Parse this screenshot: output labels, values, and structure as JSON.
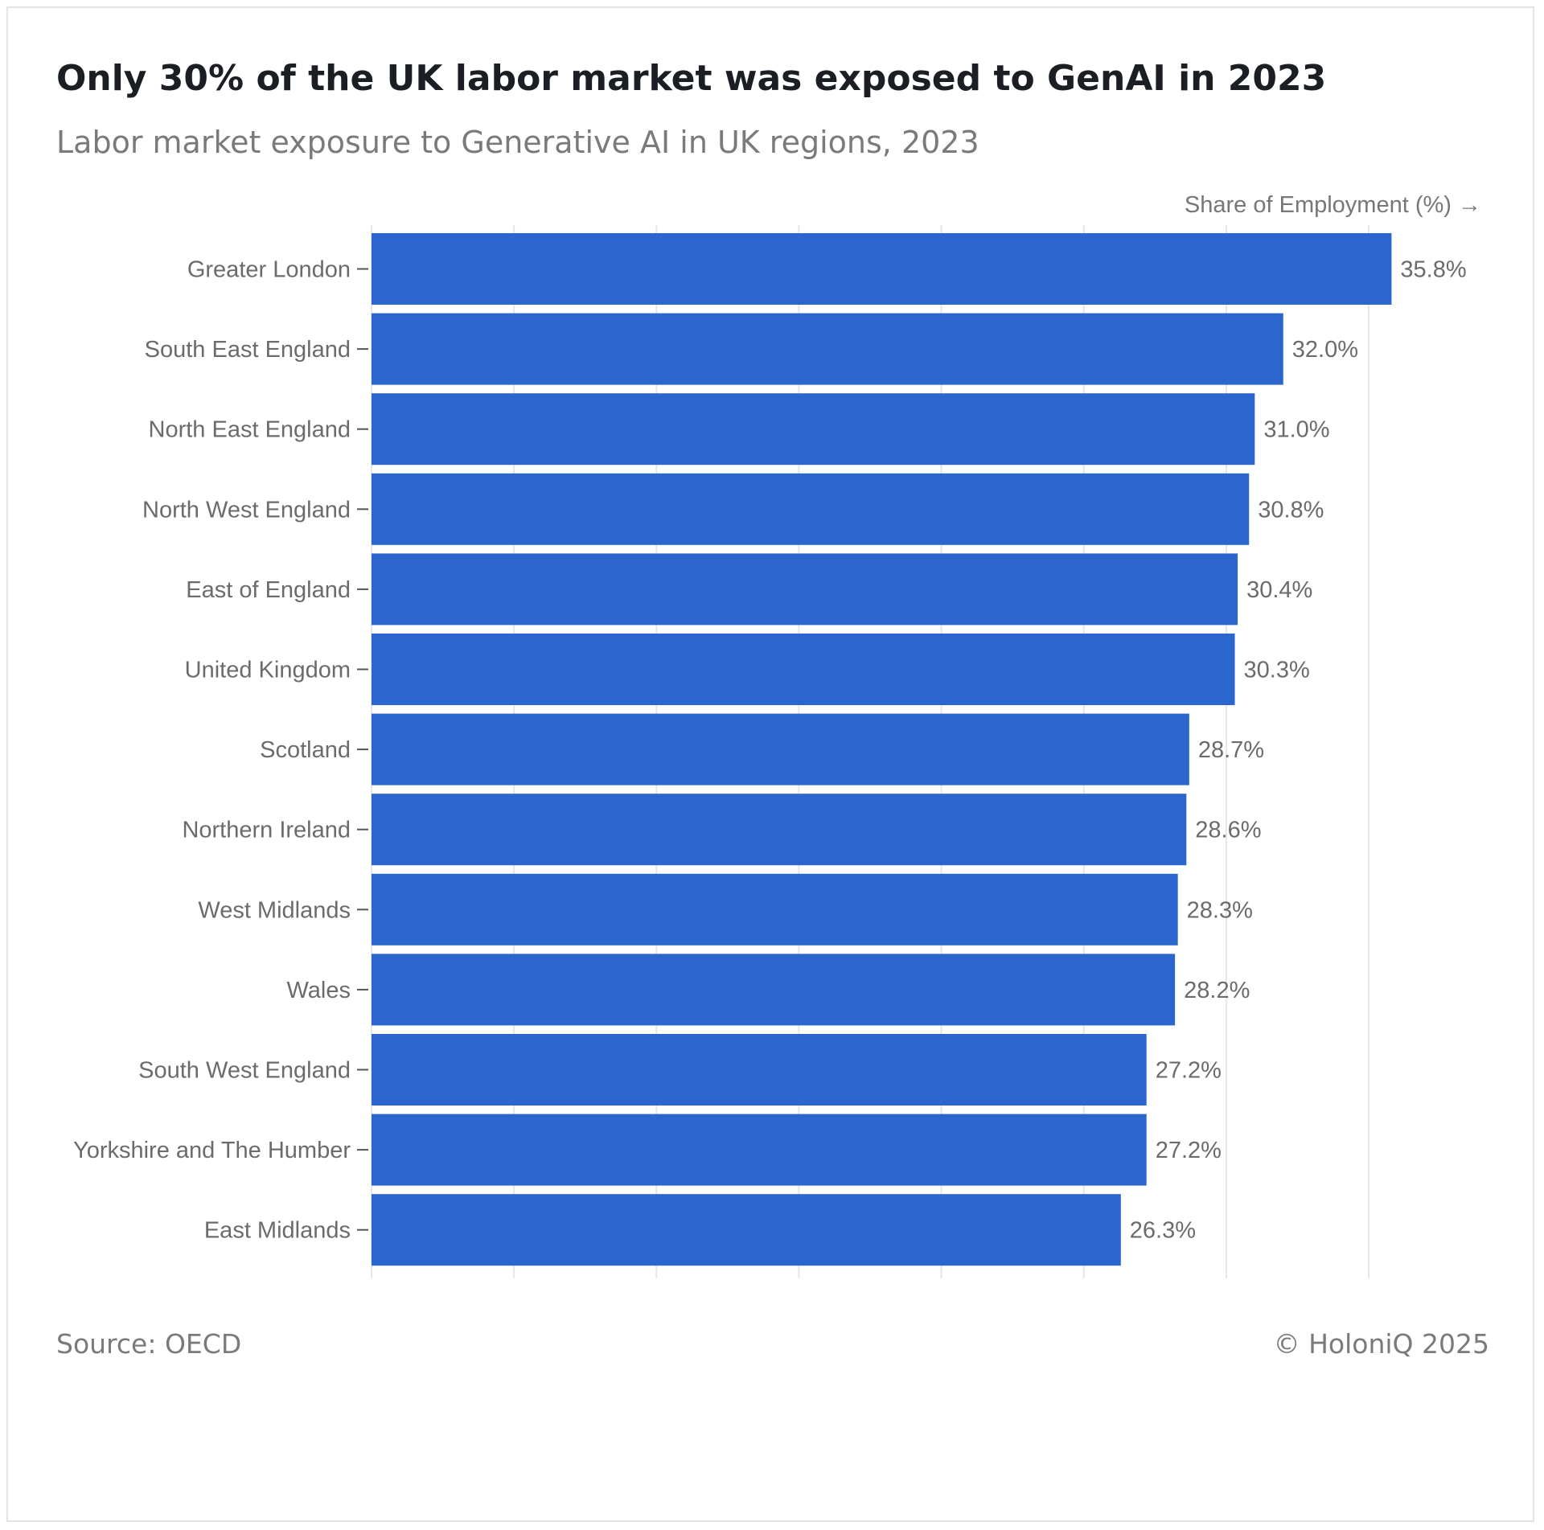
{
  "header": {
    "title": "Only 30% of the UK labor market was exposed to GenAI in 2023",
    "subtitle": "Labor market exposure to Generative AI in UK regions, 2023"
  },
  "footer": {
    "source": "Source: OECD",
    "copyright": "© HoloniQ 2025"
  },
  "chart_data": {
    "type": "bar",
    "orientation": "horizontal",
    "xlabel": "Share of Employment (%) →",
    "value_suffix": "%",
    "xlim": [
      0,
      35
    ],
    "grid": true,
    "bar_color": "#2b66cf",
    "categories": [
      "Greater London",
      "South East England",
      "North East England",
      "North West England",
      "East of England",
      "United Kingdom",
      "Scotland",
      "Northern Ireland",
      "West Midlands",
      "Wales",
      "South West England",
      "Yorkshire and The Humber",
      "East Midlands"
    ],
    "values": [
      35.8,
      32.0,
      31.0,
      30.8,
      30.4,
      30.3,
      28.7,
      28.6,
      28.3,
      28.2,
      27.2,
      27.2,
      26.3
    ],
    "data_labels": [
      "35.8%",
      "32.0%",
      "31.0%",
      "30.8%",
      "30.4%",
      "30.3%",
      "28.7%",
      "28.6%",
      "28.3%",
      "28.2%",
      "27.2%",
      "27.2%",
      "26.3%"
    ]
  }
}
